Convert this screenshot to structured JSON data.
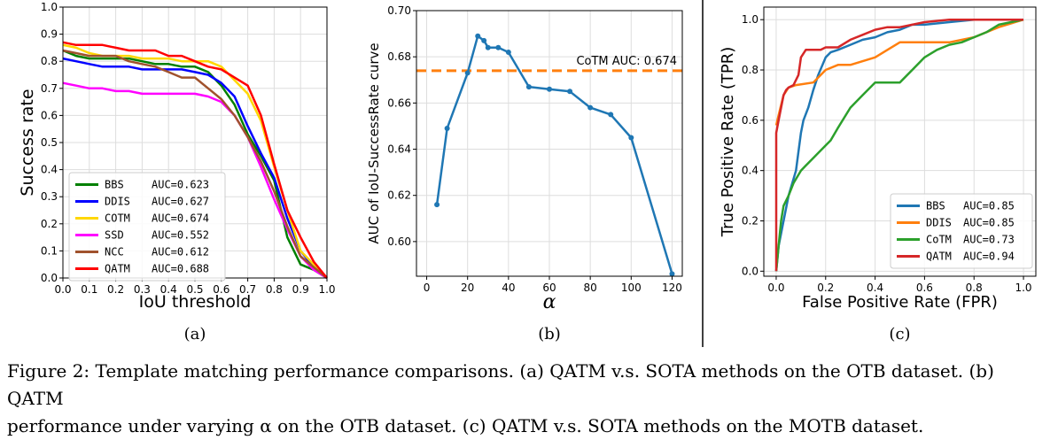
{
  "chart_data": [
    {
      "type": "line",
      "panel_label": "(a)",
      "xlabel": "IoU threshold",
      "ylabel": "Success rate",
      "xlim": [
        0.0,
        1.0
      ],
      "ylim": [
        0.0,
        1.0
      ],
      "xticks": [
        "0.0",
        "0.1",
        "0.2",
        "0.3",
        "0.4",
        "0.5",
        "0.6",
        "0.7",
        "0.8",
        "0.9",
        "1.0"
      ],
      "yticks": [
        "0.0",
        "0.1",
        "0.2",
        "0.3",
        "0.4",
        "0.5",
        "0.6",
        "0.7",
        "0.8",
        "0.9",
        "1.0"
      ],
      "grid": true,
      "legend_position": "lower-left",
      "x": [
        0.0,
        0.05,
        0.1,
        0.15,
        0.2,
        0.25,
        0.3,
        0.35,
        0.4,
        0.45,
        0.5,
        0.55,
        0.6,
        0.65,
        0.7,
        0.75,
        0.8,
        0.85,
        0.9,
        0.95,
        1.0
      ],
      "series": [
        {
          "name": "BBS",
          "auc": "AUC=0.623",
          "color": "#008000",
          "values": [
            0.84,
            0.82,
            0.81,
            0.81,
            0.81,
            0.81,
            0.8,
            0.79,
            0.79,
            0.78,
            0.78,
            0.76,
            0.71,
            0.64,
            0.53,
            0.45,
            0.36,
            0.15,
            0.05,
            0.03,
            0.0
          ]
        },
        {
          "name": "DDIS",
          "auc": "AUC=0.627",
          "color": "#0000ff",
          "values": [
            0.81,
            0.8,
            0.79,
            0.78,
            0.78,
            0.78,
            0.77,
            0.77,
            0.77,
            0.77,
            0.76,
            0.75,
            0.72,
            0.67,
            0.56,
            0.46,
            0.37,
            0.22,
            0.1,
            0.04,
            0.0
          ]
        },
        {
          "name": "COTM",
          "auc": "AUC=0.674",
          "color": "#ffd700",
          "values": [
            0.86,
            0.85,
            0.83,
            0.82,
            0.82,
            0.82,
            0.81,
            0.81,
            0.81,
            0.8,
            0.8,
            0.8,
            0.78,
            0.73,
            0.68,
            0.58,
            0.41,
            0.25,
            0.1,
            0.05,
            0.0
          ]
        },
        {
          "name": "SSD",
          "auc": "AUC=0.552",
          "color": "#ff00ff",
          "values": [
            0.72,
            0.71,
            0.7,
            0.7,
            0.69,
            0.69,
            0.68,
            0.68,
            0.68,
            0.68,
            0.68,
            0.67,
            0.65,
            0.6,
            0.52,
            0.41,
            0.29,
            0.18,
            0.08,
            0.03,
            0.0
          ]
        },
        {
          "name": "NCC",
          "auc": "AUC=0.612",
          "color": "#a0522d",
          "values": [
            0.84,
            0.83,
            0.82,
            0.82,
            0.82,
            0.8,
            0.79,
            0.78,
            0.76,
            0.74,
            0.74,
            0.7,
            0.66,
            0.6,
            0.52,
            0.43,
            0.32,
            0.19,
            0.08,
            0.04,
            0.0
          ]
        },
        {
          "name": "QATM",
          "auc": "AUC=0.688",
          "color": "#ff0000",
          "values": [
            0.87,
            0.86,
            0.86,
            0.86,
            0.85,
            0.84,
            0.84,
            0.84,
            0.82,
            0.82,
            0.8,
            0.78,
            0.77,
            0.74,
            0.71,
            0.6,
            0.42,
            0.25,
            0.15,
            0.06,
            0.0
          ]
        }
      ]
    },
    {
      "type": "line",
      "panel_label": "(b)",
      "xlabel": "α",
      "ylabel": "AUC of IoU-SuccessRate curve",
      "xlim": [
        -5,
        125
      ],
      "ylim": [
        0.585,
        0.7
      ],
      "xticks": [
        0,
        20,
        40,
        60,
        80,
        100,
        120
      ],
      "yticks": [
        "0.60",
        "0.62",
        "0.64",
        "0.66",
        "0.68",
        "0.70"
      ],
      "grid": true,
      "reference_line": {
        "label": "CoTM AUC: 0.674",
        "value": 0.674,
        "color": "#ff7f0e"
      },
      "series": [
        {
          "color": "#1f77b4",
          "x": [
            5,
            10,
            20,
            25,
            28,
            30,
            35,
            40,
            50,
            60,
            70,
            80,
            90,
            100,
            120
          ],
          "values": [
            0.616,
            0.649,
            0.673,
            0.689,
            0.687,
            0.684,
            0.684,
            0.682,
            0.667,
            0.666,
            0.665,
            0.658,
            0.655,
            0.645,
            0.586
          ]
        }
      ]
    },
    {
      "type": "line",
      "panel_label": "(c)",
      "xlabel": "False Positive Rate (FPR)",
      "ylabel": "True Positive Rate (TPR)",
      "xlim": [
        -0.05,
        1.05
      ],
      "ylim": [
        -0.02,
        1.05
      ],
      "xticks": [
        "0.0",
        "0.2",
        "0.4",
        "0.6",
        "0.8",
        "1.0"
      ],
      "yticks": [
        "0.0",
        "0.2",
        "0.4",
        "0.6",
        "0.8",
        "1.0"
      ],
      "grid": true,
      "legend_position": "lower-right",
      "series": [
        {
          "name": "BBS",
          "auc": "AUC=0.85",
          "color": "#1f77b4",
          "x": [
            0.0,
            0.01,
            0.02,
            0.03,
            0.05,
            0.08,
            0.1,
            0.11,
            0.13,
            0.15,
            0.17,
            0.2,
            0.22,
            0.25,
            0.3,
            0.35,
            0.4,
            0.45,
            0.5,
            0.55,
            0.6,
            0.7,
            0.8,
            1.0
          ],
          "values": [
            0.0,
            0.1,
            0.15,
            0.2,
            0.3,
            0.4,
            0.55,
            0.6,
            0.65,
            0.72,
            0.78,
            0.85,
            0.87,
            0.88,
            0.9,
            0.92,
            0.93,
            0.95,
            0.96,
            0.98,
            0.98,
            0.99,
            1.0,
            1.0
          ]
        },
        {
          "name": "DDIS",
          "auc": "AUC=0.85",
          "color": "#ff7f0e",
          "x": [
            0.0,
            0.01,
            0.02,
            0.03,
            0.05,
            0.08,
            0.15,
            0.2,
            0.25,
            0.3,
            0.4,
            0.45,
            0.5,
            0.6,
            0.7,
            0.8,
            0.9,
            1.0
          ],
          "values": [
            0.58,
            0.62,
            0.66,
            0.7,
            0.73,
            0.74,
            0.75,
            0.8,
            0.82,
            0.82,
            0.85,
            0.88,
            0.91,
            0.91,
            0.91,
            0.93,
            0.97,
            1.0
          ]
        },
        {
          "name": "CoTM",
          "auc": "AUC=0.73",
          "color": "#2ca02c",
          "x": [
            0.0,
            0.01,
            0.02,
            0.03,
            0.05,
            0.07,
            0.1,
            0.12,
            0.15,
            0.2,
            0.22,
            0.25,
            0.3,
            0.35,
            0.4,
            0.5,
            0.55,
            0.6,
            0.65,
            0.7,
            0.75,
            0.8,
            0.85,
            0.9,
            0.95,
            1.0
          ],
          "values": [
            0.0,
            0.1,
            0.2,
            0.26,
            0.3,
            0.35,
            0.4,
            0.42,
            0.45,
            0.5,
            0.52,
            0.57,
            0.65,
            0.7,
            0.75,
            0.75,
            0.8,
            0.85,
            0.88,
            0.9,
            0.91,
            0.93,
            0.95,
            0.98,
            0.99,
            1.0
          ]
        },
        {
          "name": "QATM",
          "auc": "AUC=0.94",
          "color": "#d62728",
          "x": [
            0.0,
            0.0,
            0.01,
            0.02,
            0.03,
            0.04,
            0.05,
            0.07,
            0.09,
            0.1,
            0.12,
            0.15,
            0.18,
            0.2,
            0.25,
            0.3,
            0.35,
            0.4,
            0.45,
            0.5,
            0.55,
            0.6,
            0.7,
            0.8,
            1.0
          ],
          "values": [
            0.0,
            0.55,
            0.6,
            0.65,
            0.7,
            0.72,
            0.73,
            0.74,
            0.78,
            0.85,
            0.88,
            0.88,
            0.88,
            0.89,
            0.89,
            0.92,
            0.94,
            0.96,
            0.97,
            0.97,
            0.98,
            0.99,
            1.0,
            1.0,
            1.0
          ]
        }
      ]
    }
  ],
  "caption": {
    "line1": "Figure 2:  Template matching performance comparisons.  (a) QATM v.s.  SOTA methods on the OTB dataset.  (b) QATM",
    "line2": "performance under varying α on the OTB dataset. (c) QATM v.s. SOTA methods on the MOTB dataset."
  }
}
